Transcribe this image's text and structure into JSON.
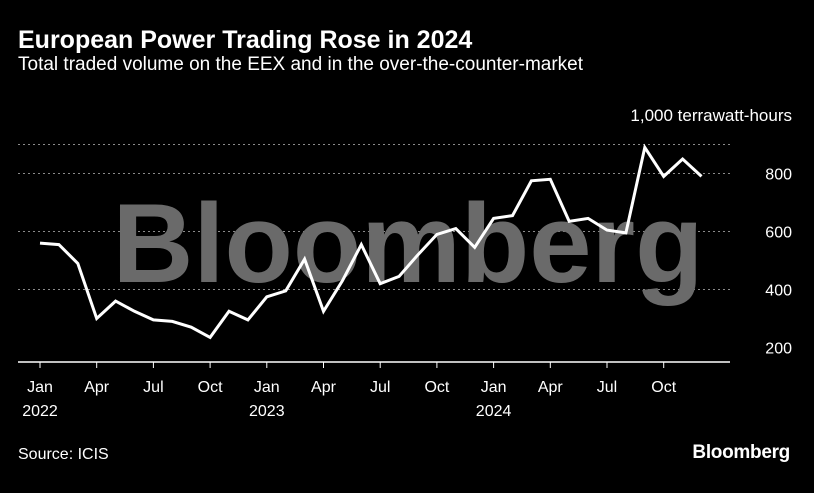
{
  "chart_data": {
    "type": "line",
    "title": "European Power Trading Rose in 2024",
    "subtitle": "Total traded volume on the EEX and in the over-the-counter-market",
    "ylabel": "1,000 terrawatt-hours",
    "ylim": [
      150,
      950
    ],
    "yticks": [
      200,
      400,
      600,
      800
    ],
    "ytick_labels": [
      "200",
      "400",
      "600",
      "800"
    ],
    "grid": true,
    "xticks": [
      {
        "month": "2022-01",
        "label": "Jan",
        "year": "2022"
      },
      {
        "month": "2022-04",
        "label": "Apr",
        "year": ""
      },
      {
        "month": "2022-07",
        "label": "Jul",
        "year": ""
      },
      {
        "month": "2022-10",
        "label": "Oct",
        "year": ""
      },
      {
        "month": "2023-01",
        "label": "Jan",
        "year": "2023"
      },
      {
        "month": "2023-04",
        "label": "Apr",
        "year": ""
      },
      {
        "month": "2023-07",
        "label": "Jul",
        "year": ""
      },
      {
        "month": "2023-10",
        "label": "Oct",
        "year": ""
      },
      {
        "month": "2024-01",
        "label": "Jan",
        "year": "2024"
      },
      {
        "month": "2024-04",
        "label": "Apr",
        "year": ""
      },
      {
        "month": "2024-07",
        "label": "Jul",
        "year": ""
      },
      {
        "month": "2024-10",
        "label": "Oct",
        "year": ""
      }
    ],
    "series": [
      {
        "color": "#ffffff",
        "x": [
          "2022-01",
          "2022-02",
          "2022-03",
          "2022-04",
          "2022-05",
          "2022-06",
          "2022-07",
          "2022-08",
          "2022-09",
          "2022-10",
          "2022-11",
          "2022-12",
          "2023-01",
          "2023-02",
          "2023-03",
          "2023-04",
          "2023-05",
          "2023-06",
          "2023-07",
          "2023-08",
          "2023-09",
          "2023-10",
          "2023-11",
          "2023-12",
          "2024-01",
          "2024-02",
          "2024-03",
          "2024-04",
          "2024-05",
          "2024-06",
          "2024-07",
          "2024-08",
          "2024-09",
          "2024-10",
          "2024-11",
          "2024-12"
        ],
        "values": [
          560,
          555,
          490,
          300,
          360,
          325,
          295,
          290,
          270,
          235,
          325,
          295,
          375,
          395,
          505,
          325,
          430,
          555,
          420,
          445,
          520,
          590,
          610,
          545,
          645,
          655,
          775,
          780,
          635,
          645,
          605,
          595,
          890,
          790,
          850,
          790
        ]
      }
    ]
  },
  "watermark": "Bloomberg",
  "footer": {
    "source": "Source: ICIS",
    "brand": "Bloomberg"
  }
}
